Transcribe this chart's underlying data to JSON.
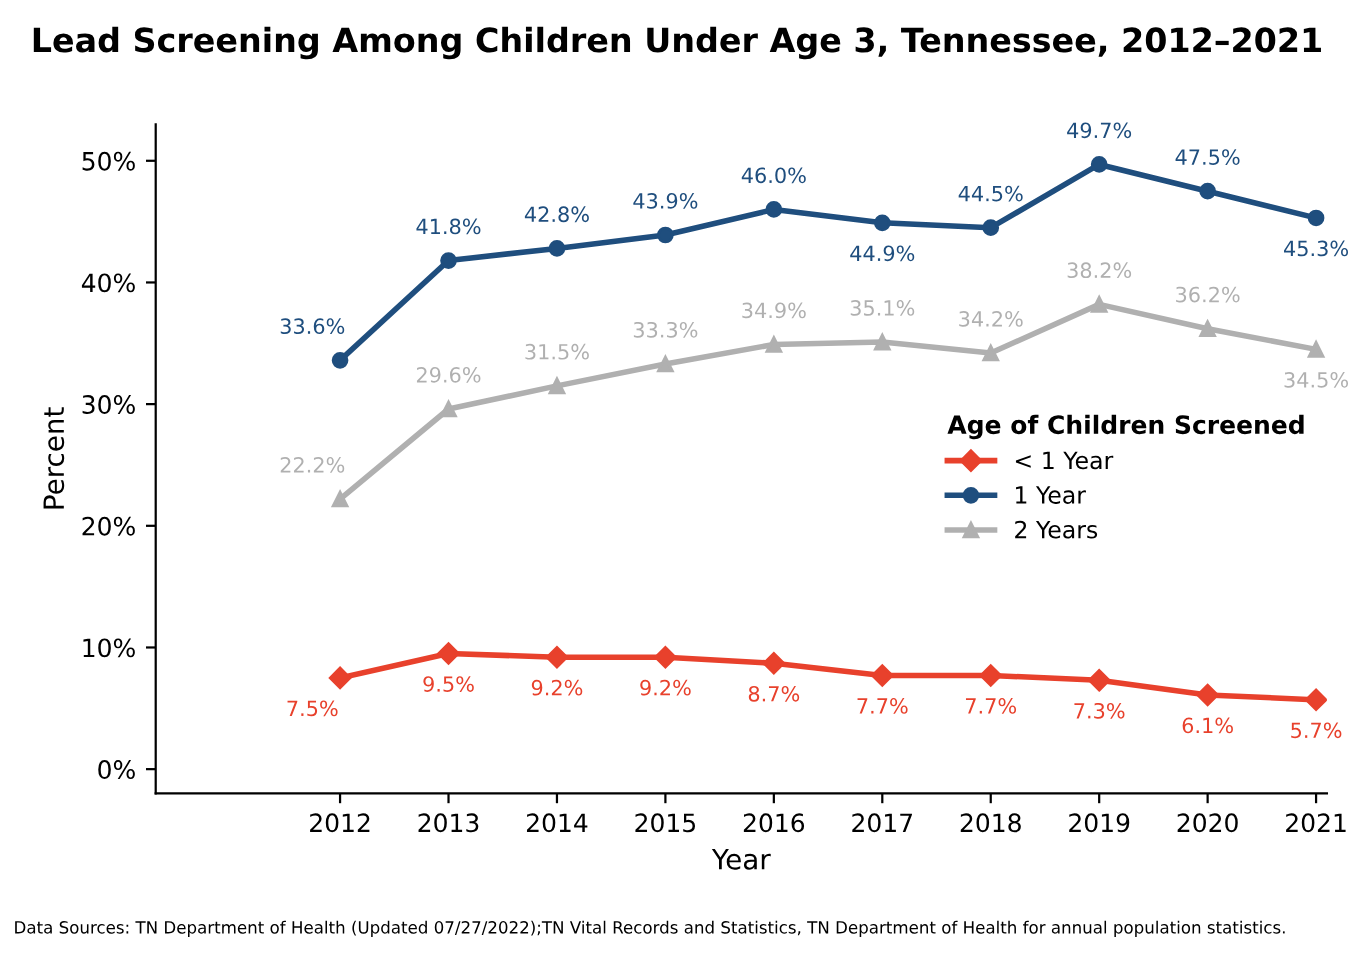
{
  "chart_data": {
    "type": "line",
    "title": "Lead Screening Among Children Under Age 3, Tennessee, 2012–2021",
    "xlabel": "Year",
    "ylabel": "Percent",
    "legend_title": "Age of Children Screened",
    "legend": "right",
    "x": [
      2012,
      2013,
      2014,
      2015,
      2016,
      2017,
      2018,
      2019,
      2020,
      2021
    ],
    "xlim": [
      2010.3,
      2021.1
    ],
    "xticks": [
      2012,
      2013,
      2014,
      2015,
      2016,
      2017,
      2018,
      2019,
      2020,
      2021
    ],
    "ylim": [
      -2,
      53
    ],
    "yticks": [
      {
        "value": 0,
        "label": "0%"
      },
      {
        "value": 10,
        "label": "10%"
      },
      {
        "value": 20,
        "label": "20%"
      },
      {
        "value": 30,
        "label": "30%"
      },
      {
        "value": 40,
        "label": "40%"
      },
      {
        "value": 50,
        "label": "50%"
      }
    ],
    "grid": false,
    "line_style": "solid",
    "series": [
      {
        "name": "< 1 Year",
        "color": "#e8412c",
        "marker": "diamond",
        "values": [
          7.5,
          9.5,
          9.2,
          9.2,
          8.7,
          7.7,
          7.7,
          7.3,
          6.1,
          5.7
        ],
        "value_labels": [
          "7.5%",
          "9.5%",
          "9.2%",
          "9.2%",
          "8.7%",
          "7.7%",
          "7.7%",
          "7.3%",
          "6.1%",
          "5.7%"
        ]
      },
      {
        "name": "1 Year",
        "color": "#1f4e7e",
        "marker": "circle",
        "values": [
          33.6,
          41.8,
          42.8,
          43.9,
          46.0,
          44.9,
          44.5,
          49.7,
          47.5,
          45.3
        ],
        "value_labels": [
          "33.6%",
          "41.8%",
          "42.8%",
          "43.9%",
          "46.0%",
          "44.9%",
          "44.5%",
          "49.7%",
          "47.5%",
          "45.3%"
        ]
      },
      {
        "name": "2 Years",
        "color": "#b0b0b0",
        "marker": "triangle",
        "values": [
          22.2,
          29.6,
          31.5,
          33.3,
          34.9,
          35.1,
          34.2,
          38.2,
          36.2,
          34.5
        ],
        "value_labels": [
          "22.2%",
          "29.6%",
          "31.5%",
          "33.3%",
          "34.9%",
          "35.1%",
          "34.2%",
          "38.2%",
          "36.2%",
          "34.5%"
        ]
      }
    ],
    "annotations": [
      "Data Sources: TN Department of Health (Updated 07/27/2022);TN Vital Records and Statistics, TN Department of Health for annual population statistics."
    ]
  }
}
